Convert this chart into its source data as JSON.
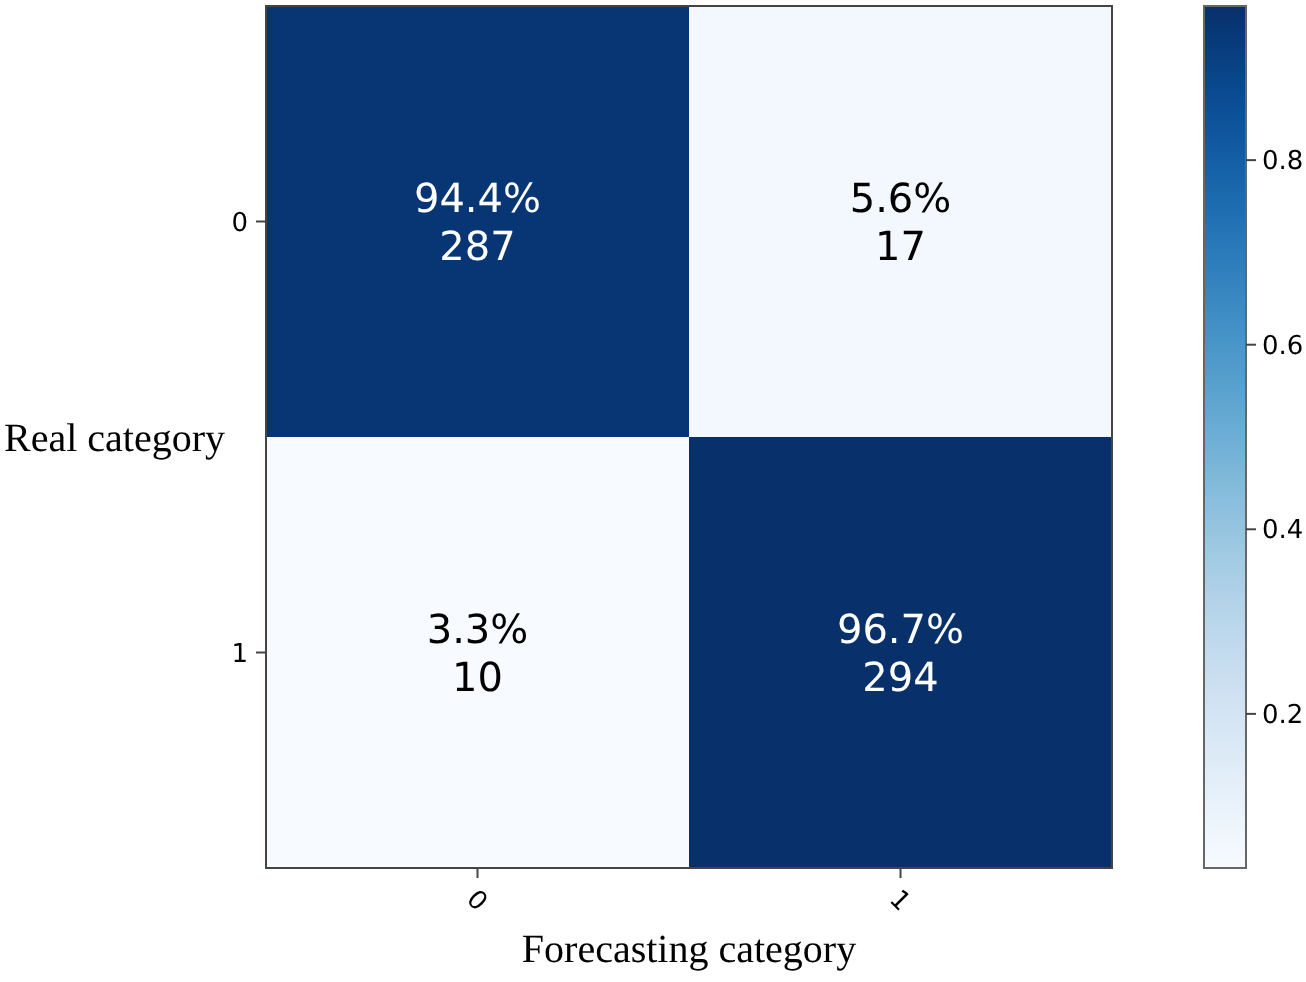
{
  "chart_data": {
    "type": "heatmap",
    "xlabel": "Forecasting category",
    "ylabel": "Real category",
    "categories": [
      "0",
      "1"
    ],
    "y_categories": [
      "0",
      "1"
    ],
    "cells": [
      [
        0.944,
        0.056
      ],
      [
        0.033,
        0.967
      ]
    ],
    "cell_labels": [
      [
        "94.4%\n287",
        "5.6%\n17"
      ],
      [
        "3.3%\n10",
        "96.7%\n294"
      ]
    ],
    "clim": [
      0.033,
      0.967
    ],
    "cticks": [
      0.2,
      0.4,
      0.6,
      0.8
    ]
  }
}
